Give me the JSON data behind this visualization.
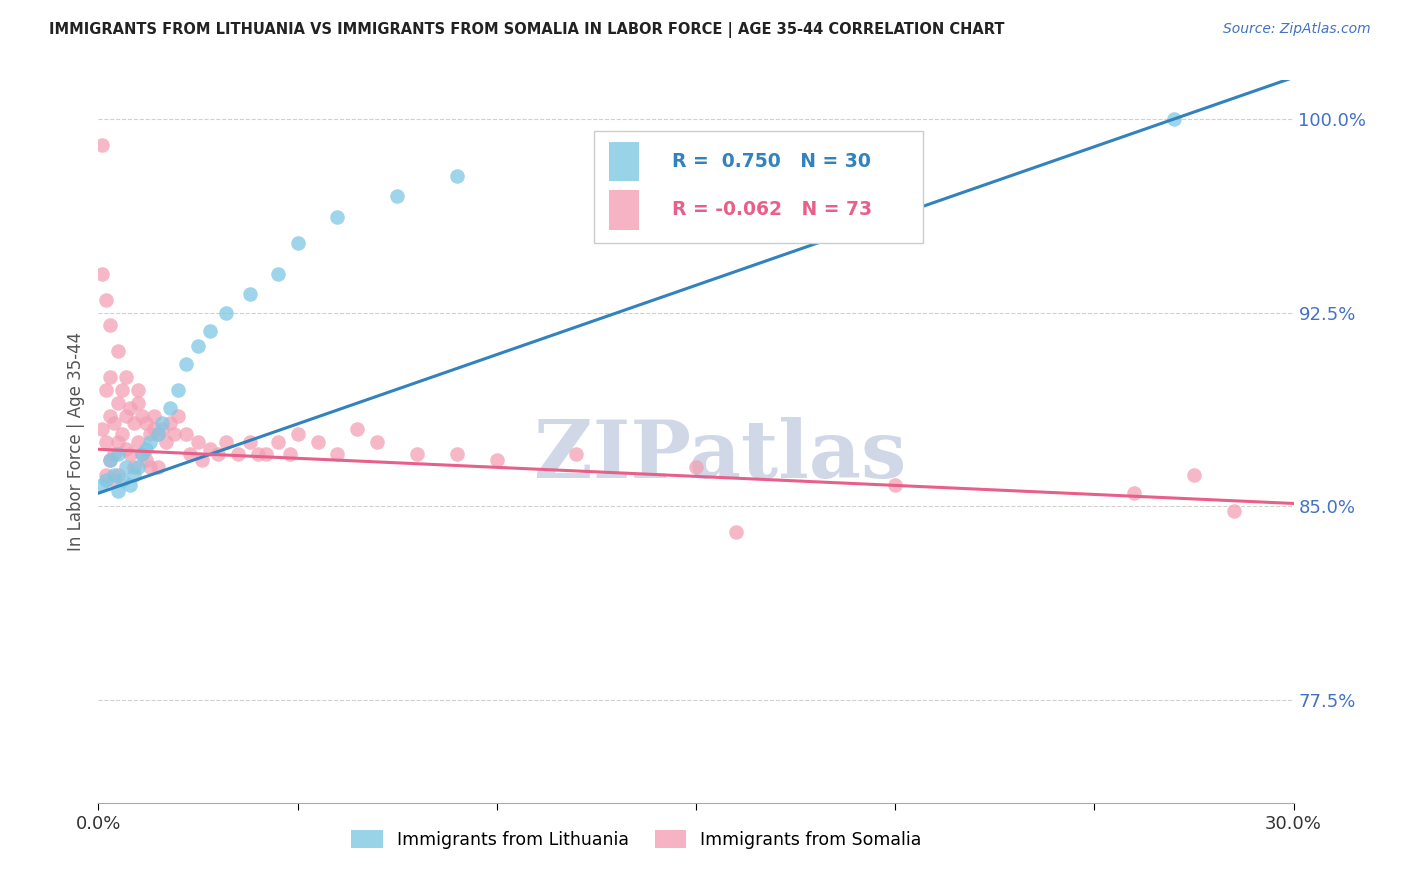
{
  "title": "IMMIGRANTS FROM LITHUANIA VS IMMIGRANTS FROM SOMALIA IN LABOR FORCE | AGE 35-44 CORRELATION CHART",
  "source": "Source: ZipAtlas.com",
  "ylabel": "In Labor Force | Age 35-44",
  "xlim": [
    0.0,
    0.3
  ],
  "ylim": [
    0.735,
    1.015
  ],
  "yticks": [
    0.775,
    0.85,
    0.925,
    1.0
  ],
  "ytick_labels": [
    "77.5%",
    "85.0%",
    "92.5%",
    "100.0%"
  ],
  "xticks": [
    0.0,
    0.05,
    0.1,
    0.15,
    0.2,
    0.25,
    0.3
  ],
  "xtick_labels": [
    "0.0%",
    "",
    "",
    "",
    "",
    "",
    "30.0%"
  ],
  "lithuania_R": 0.75,
  "lithuania_N": 30,
  "somalia_R": -0.062,
  "somalia_N": 73,
  "lithuania_color": "#7ec8e3",
  "somalia_color": "#f4a0b5",
  "trendline_lithuania_color": "#3182bd",
  "trendline_somalia_color": "#e8608a",
  "watermark": "ZIPatlas",
  "watermark_color": "#d0d8e8",
  "background_color": "#ffffff",
  "grid_color": "#d0d0d0",
  "title_color": "#222222",
  "axis_label_color": "#555555",
  "right_label_color": "#4472c4",
  "legend_label_color_lith": "#3182bd",
  "legend_label_color_som": "#e8608a",
  "lithuania_x": [
    0.001,
    0.002,
    0.003,
    0.004,
    0.005,
    0.005,
    0.006,
    0.007,
    0.008,
    0.009,
    0.01,
    0.011,
    0.012,
    0.013,
    0.015,
    0.016,
    0.018,
    0.02,
    0.022,
    0.025,
    0.028,
    0.032,
    0.038,
    0.045,
    0.05,
    0.06,
    0.075,
    0.09,
    0.13,
    0.27
  ],
  "lithuania_y": [
    0.858,
    0.86,
    0.868,
    0.862,
    0.856,
    0.87,
    0.86,
    0.865,
    0.858,
    0.862,
    0.865,
    0.87,
    0.872,
    0.875,
    0.878,
    0.882,
    0.888,
    0.895,
    0.905,
    0.912,
    0.918,
    0.925,
    0.932,
    0.94,
    0.952,
    0.962,
    0.97,
    0.978,
    0.988,
    1.0
  ],
  "somalia_x": [
    0.001,
    0.001,
    0.001,
    0.002,
    0.002,
    0.002,
    0.003,
    0.003,
    0.003,
    0.004,
    0.004,
    0.004,
    0.005,
    0.005,
    0.005,
    0.006,
    0.006,
    0.007,
    0.007,
    0.008,
    0.008,
    0.009,
    0.009,
    0.01,
    0.01,
    0.011,
    0.011,
    0.012,
    0.012,
    0.013,
    0.013,
    0.014,
    0.015,
    0.015,
    0.016,
    0.017,
    0.018,
    0.019,
    0.02,
    0.022,
    0.023,
    0.025,
    0.026,
    0.028,
    0.03,
    0.032,
    0.035,
    0.038,
    0.04,
    0.042,
    0.045,
    0.048,
    0.05,
    0.055,
    0.06,
    0.065,
    0.07,
    0.08,
    0.09,
    0.1,
    0.12,
    0.15,
    0.16,
    0.2,
    0.26,
    0.275,
    0.285,
    0.002,
    0.003,
    0.005,
    0.007,
    0.01,
    0.014
  ],
  "somalia_y": [
    0.99,
    0.94,
    0.88,
    0.895,
    0.875,
    0.862,
    0.9,
    0.885,
    0.868,
    0.882,
    0.87,
    0.86,
    0.89,
    0.875,
    0.862,
    0.895,
    0.878,
    0.885,
    0.872,
    0.888,
    0.87,
    0.882,
    0.865,
    0.89,
    0.875,
    0.885,
    0.87,
    0.882,
    0.868,
    0.878,
    0.865,
    0.88,
    0.878,
    0.865,
    0.88,
    0.875,
    0.882,
    0.878,
    0.885,
    0.878,
    0.87,
    0.875,
    0.868,
    0.872,
    0.87,
    0.875,
    0.87,
    0.875,
    0.87,
    0.87,
    0.875,
    0.87,
    0.878,
    0.875,
    0.87,
    0.88,
    0.875,
    0.87,
    0.87,
    0.868,
    0.87,
    0.865,
    0.84,
    0.858,
    0.855,
    0.862,
    0.848,
    0.93,
    0.92,
    0.91,
    0.9,
    0.895,
    0.885
  ]
}
